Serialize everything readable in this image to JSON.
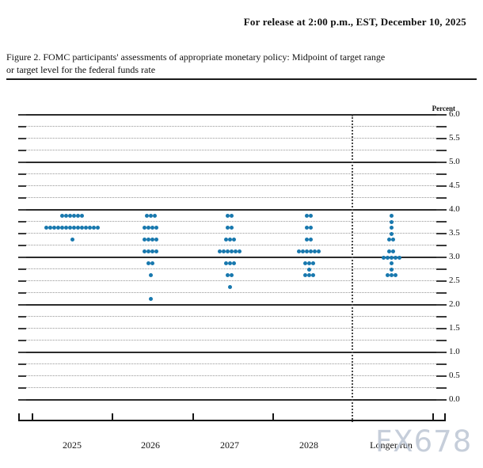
{
  "header": {
    "release_line": "For release at 2:00 p.m., EST, December 10, 2025"
  },
  "figure": {
    "caption_line1": "Figure 2. FOMC participants' assessments of appropriate monetary policy: Midpoint of target range",
    "caption_line2": "or target level for the federal funds rate"
  },
  "watermark_text": "FX678",
  "chart_data": {
    "type": "scatter",
    "title": "FOMC participants' assessments of appropriate monetary policy: Midpoint of target range or target level for the federal funds rate",
    "ylabel": "Percent",
    "xlabel": "",
    "ylim": [
      0.0,
      6.0
    ],
    "y_label_step": 0.5,
    "y_grid_step": 0.25,
    "grid": "solid lines at integers, dotted lines every 0.25",
    "legend_position": "none",
    "y_tick_labels": [
      "6.0",
      "5.5",
      "5.0",
      "4.5",
      "4.0",
      "3.5",
      "3.0",
      "2.5",
      "2.0",
      "1.5",
      "1.0",
      "0.5",
      "0.0"
    ],
    "categories": [
      "2025",
      "2026",
      "2027",
      "2028",
      "Longer run"
    ],
    "separator_note": "vertical dotted line between 2028 and Longer run",
    "dot_color": "#1878ae",
    "columns": [
      {
        "label": "2025",
        "dots": [
          {
            "rate": 3.875,
            "count": 6
          },
          {
            "rate": 3.625,
            "count": 14
          },
          {
            "rate": 3.375,
            "count": 1
          }
        ]
      },
      {
        "label": "2026",
        "dots": [
          {
            "rate": 3.875,
            "count": 3
          },
          {
            "rate": 3.625,
            "count": 4
          },
          {
            "rate": 3.375,
            "count": 4
          },
          {
            "rate": 3.125,
            "count": 4
          },
          {
            "rate": 2.875,
            "count": 2
          },
          {
            "rate": 2.625,
            "count": 1
          },
          {
            "rate": 2.125,
            "count": 1
          }
        ]
      },
      {
        "label": "2027",
        "dots": [
          {
            "rate": 3.875,
            "count": 2
          },
          {
            "rate": 3.625,
            "count": 2
          },
          {
            "rate": 3.375,
            "count": 3
          },
          {
            "rate": 3.125,
            "count": 6
          },
          {
            "rate": 2.875,
            "count": 3
          },
          {
            "rate": 2.625,
            "count": 2
          },
          {
            "rate": 2.375,
            "count": 1
          }
        ]
      },
      {
        "label": "2028",
        "dots": [
          {
            "rate": 3.875,
            "count": 2
          },
          {
            "rate": 3.625,
            "count": 2
          },
          {
            "rate": 3.375,
            "count": 2
          },
          {
            "rate": 3.125,
            "count": 6
          },
          {
            "rate": 2.875,
            "count": 3
          },
          {
            "rate": 2.75,
            "count": 1
          },
          {
            "rate": 2.625,
            "count": 3
          }
        ]
      },
      {
        "label": "Longer run",
        "dots": [
          {
            "rate": 3.875,
            "count": 1
          },
          {
            "rate": 3.75,
            "count": 1
          },
          {
            "rate": 3.625,
            "count": 1
          },
          {
            "rate": 3.5,
            "count": 1
          },
          {
            "rate": 3.375,
            "count": 2
          },
          {
            "rate": 3.125,
            "count": 2
          },
          {
            "rate": 3.0,
            "count": 5
          },
          {
            "rate": 2.875,
            "count": 1
          },
          {
            "rate": 2.75,
            "count": 1
          },
          {
            "rate": 2.625,
            "count": 3
          }
        ]
      }
    ],
    "layout": {
      "x_centers": [
        68,
        167,
        267,
        367,
        471
      ],
      "x_boundary_ticks": [
        0,
        17,
        118,
        220,
        321,
        523,
        538
      ],
      "separator_x": 421
    }
  }
}
